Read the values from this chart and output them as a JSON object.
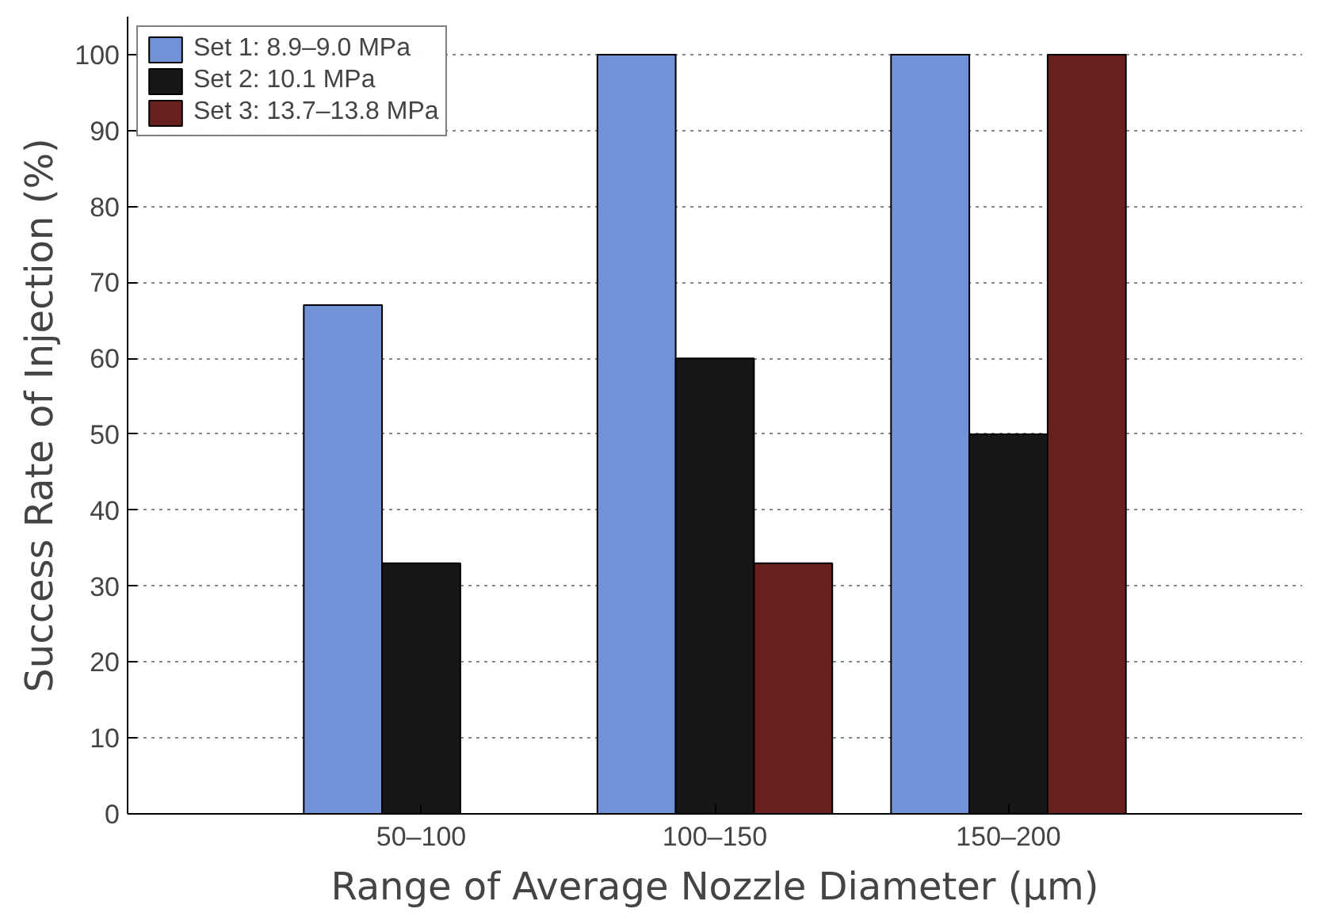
{
  "chart_data": {
    "type": "bar",
    "xlabel": "Range of Average Nozzle Diameter (μm)",
    "ylabel": "Success Rate of Injection (%)",
    "categories": [
      "50–100",
      "100–150",
      "150–200"
    ],
    "series": [
      {
        "name": "Set 1: 8.9–9.0 MPa",
        "color": "#7292d8",
        "values": [
          67,
          100,
          100
        ]
      },
      {
        "name": "Set 2: 10.1 MPa",
        "color": "#161616",
        "values": [
          33,
          60,
          50
        ]
      },
      {
        "name": "Set 3: 13.7–13.8 MPa",
        "color": "#6a1f1f",
        "values": [
          null,
          33,
          100
        ]
      }
    ],
    "ylim": [
      0,
      105
    ],
    "yticks": [
      0,
      10,
      20,
      30,
      40,
      50,
      60,
      70,
      80,
      90,
      100
    ],
    "grid": "y",
    "legend": "top left"
  }
}
